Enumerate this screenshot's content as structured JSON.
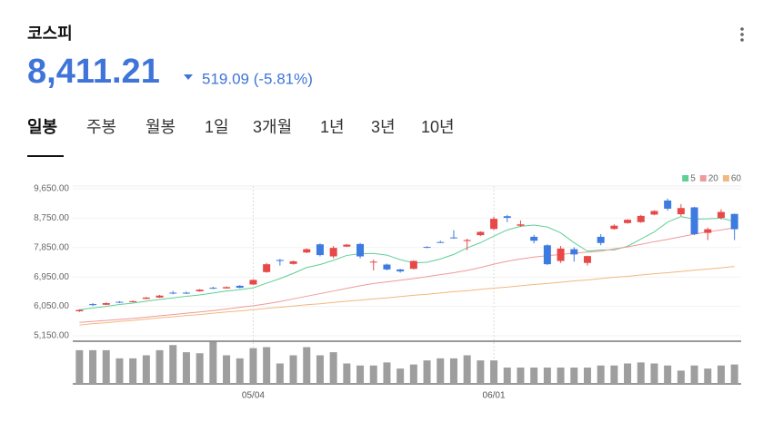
{
  "header": {
    "title": "코스피",
    "price": "8,411.21",
    "change": "519.09 (-5.81%)"
  },
  "tabs": [
    "일봉",
    "주봉",
    "월봉",
    "1일",
    "3개월",
    "1년",
    "3년",
    "10년"
  ],
  "chart_data": {
    "type": "candlestick",
    "categories": [
      null,
      null,
      null,
      null,
      null,
      null,
      null,
      null,
      null,
      null,
      null,
      null,
      null,
      "05/04",
      null,
      null,
      null,
      null,
      null,
      null,
      null,
      null,
      null,
      null,
      null,
      null,
      null,
      null,
      null,
      null,
      null,
      "06/01",
      null,
      null,
      null,
      null,
      null,
      null,
      null,
      null,
      null,
      null,
      null,
      null,
      null,
      null,
      null,
      null,
      null,
      null
    ],
    "open": [
      5900,
      6120,
      6100,
      6190,
      6180,
      6280,
      6320,
      6470,
      6470,
      6510,
      6620,
      6600,
      6680,
      6720,
      7100,
      7470,
      7350,
      7700,
      7950,
      7580,
      7880,
      7960,
      7400,
      7330,
      7180,
      7200,
      7870,
      8020,
      8160,
      8050,
      8230,
      8420,
      8810,
      8520,
      8180,
      7920,
      7440,
      7800,
      7380,
      8180,
      8420,
      8600,
      8630,
      8860,
      9290,
      8870,
      9080,
      8300,
      8760,
      8880
    ],
    "high": [
      5960,
      6150,
      6170,
      6210,
      6230,
      6340,
      6400,
      6520,
      6500,
      6580,
      6650,
      6660,
      6700,
      6880,
      7380,
      7500,
      7450,
      7830,
      7980,
      7900,
      7960,
      7990,
      7480,
      7360,
      7200,
      7460,
      7890,
      8060,
      8380,
      8120,
      8350,
      8790,
      8850,
      8680,
      8240,
      7950,
      7900,
      7860,
      7600,
      8260,
      8560,
      8720,
      8850,
      8990,
      9350,
      9180,
      9100,
      8460,
      9020,
      8890
    ],
    "low": [
      5880,
      6060,
      6090,
      6150,
      6170,
      6270,
      6310,
      6420,
      6430,
      6500,
      6580,
      6590,
      6600,
      6710,
      7080,
      7300,
      7330,
      7680,
      7580,
      7520,
      7870,
      7520,
      7150,
      7150,
      7080,
      7180,
      7830,
      7990,
      8120,
      7770,
      8200,
      8390,
      8630,
      8480,
      7980,
      7320,
      7380,
      7420,
      7300,
      7920,
      8400,
      8580,
      8610,
      8840,
      8980,
      8820,
      8230,
      8080,
      8710,
      8080
    ],
    "close": [
      5940,
      6090,
      6150,
      6170,
      6210,
      6320,
      6380,
      6450,
      6460,
      6560,
      6600,
      6640,
      6620,
      6860,
      7340,
      7440,
      7430,
      7800,
      7620,
      7840,
      7940,
      7580,
      7420,
      7180,
      7120,
      7440,
      7850,
      8000,
      8140,
      8080,
      8330,
      8730,
      8760,
      8560,
      8060,
      7340,
      7820,
      7640,
      7590,
      7990,
      8520,
      8700,
      8820,
      8970,
      9040,
      9060,
      8260,
      8410,
      8940,
      8411.21
    ],
    "up_color": "#e84848",
    "down_color": "#3d7be0",
    "series": [
      {
        "name": "5",
        "color": "#5fcf95",
        "values": [
          5950,
          6000,
          6050,
          6110,
          6150,
          6210,
          6260,
          6310,
          6360,
          6400,
          6460,
          6520,
          6560,
          6620,
          6760,
          6900,
          7060,
          7240,
          7330,
          7460,
          7610,
          7660,
          7670,
          7620,
          7480,
          7380,
          7400,
          7500,
          7640,
          7840,
          8000,
          8200,
          8390,
          8500,
          8540,
          8480,
          8300,
          8000,
          7740,
          7780,
          7780,
          7890,
          8110,
          8330,
          8630,
          8800,
          8720,
          8730,
          8750,
          8650
        ]
      },
      {
        "name": "20",
        "color": "#ef9a9a",
        "values": [
          5560,
          5590,
          5620,
          5650,
          5680,
          5720,
          5760,
          5800,
          5840,
          5880,
          5920,
          5970,
          6020,
          6070,
          6130,
          6200,
          6280,
          6360,
          6440,
          6520,
          6600,
          6680,
          6750,
          6800,
          6850,
          6900,
          6960,
          7020,
          7080,
          7150,
          7240,
          7340,
          7430,
          7500,
          7560,
          7600,
          7640,
          7680,
          7710,
          7740,
          7810,
          7870,
          7950,
          8030,
          8100,
          8180,
          8260,
          8330,
          8390,
          8460
        ]
      },
      {
        "name": "60",
        "color": "#f2b880",
        "values": [
          5480,
          5520,
          5550,
          5590,
          5620,
          5660,
          5700,
          5730,
          5770,
          5800,
          5840,
          5880,
          5910,
          5950,
          5990,
          6020,
          6060,
          6100,
          6130,
          6170,
          6210,
          6240,
          6280,
          6310,
          6350,
          6390,
          6420,
          6460,
          6500,
          6530,
          6570,
          6610,
          6640,
          6680,
          6720,
          6750,
          6790,
          6830,
          6860,
          6900,
          6940,
          6970,
          7010,
          7050,
          7080,
          7120,
          7160,
          7190,
          7230,
          7270
        ]
      }
    ],
    "ylim": [
      5000,
      10150
    ],
    "yticks": [
      {
        "value": 5150,
        "label": "5,150.00"
      },
      {
        "value": 6050,
        "label": "6,050.00"
      },
      {
        "value": 6950,
        "label": "6,950.00"
      },
      {
        "value": 7850,
        "label": "7,850.00"
      },
      {
        "value": 8750,
        "label": "8,750.00"
      },
      {
        "value": 9650,
        "label": "9,650.00"
      }
    ],
    "volume": {
      "color": "#9e9e9e",
      "ylim": [
        0,
        40
      ],
      "values": [
        33,
        33,
        33,
        25,
        25,
        28,
        33,
        38,
        31,
        30,
        41,
        28,
        25,
        35,
        36,
        20,
        28,
        36,
        28,
        31,
        20,
        18,
        18,
        21,
        15,
        19,
        23,
        25,
        25,
        28,
        23,
        23,
        16,
        16,
        16,
        16,
        16,
        16,
        16,
        18,
        18,
        20,
        21,
        20,
        18,
        13,
        18,
        15,
        18,
        19
      ]
    },
    "legend": "top-right"
  }
}
